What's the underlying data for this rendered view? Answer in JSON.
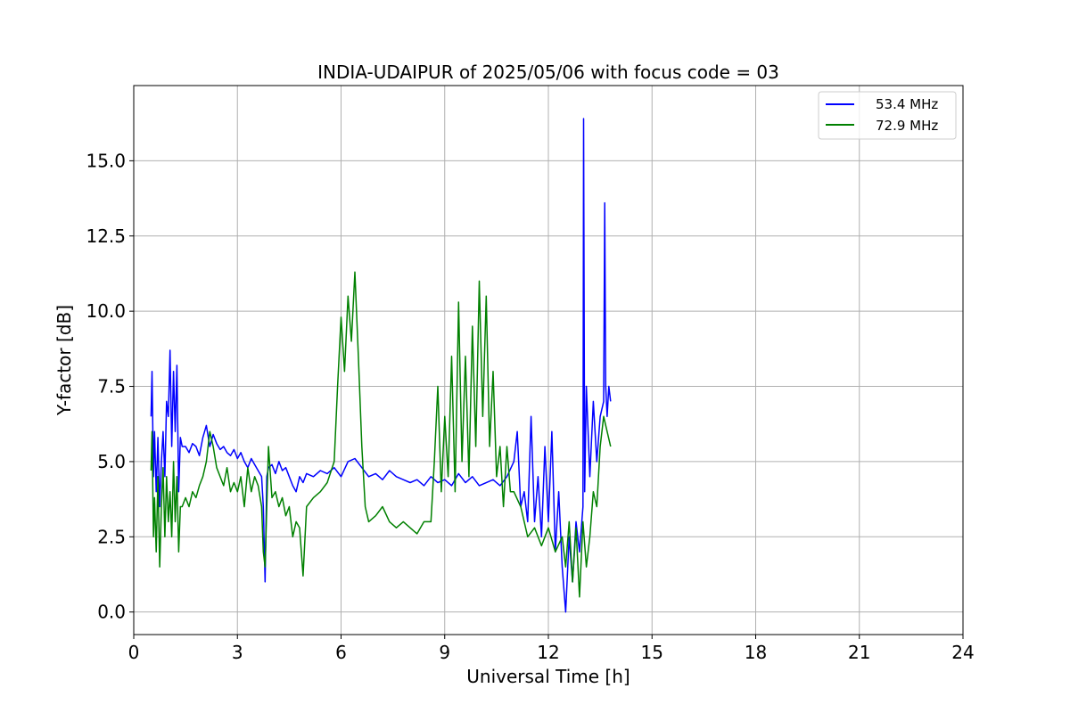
{
  "chart_data": {
    "type": "line",
    "title": "INDIA-UDAIPUR of 2025/05/06 with focus code = 03",
    "xlabel": "Universal Time [h]",
    "ylabel": "Y-factor [dB]",
    "xlim": [
      0,
      24
    ],
    "ylim": [
      -0.75,
      17.5
    ],
    "xticks": [
      0,
      3,
      6,
      9,
      12,
      15,
      18,
      21,
      24
    ],
    "xtick_labels": [
      "0",
      "3",
      "6",
      "9",
      "12",
      "15",
      "18",
      "21",
      "24"
    ],
    "yticks": [
      0,
      2.5,
      5,
      7.5,
      10,
      12.5,
      15
    ],
    "ytick_labels": [
      "0.0",
      "2.5",
      "5.0",
      "7.5",
      "10.0",
      "12.5",
      "15.0"
    ],
    "grid": true,
    "legend_position": "top-right",
    "series": [
      {
        "name": "53.4 MHz",
        "color": "#0000ff",
        "x": [
          0.5,
          0.53,
          0.57,
          0.6,
          0.65,
          0.7,
          0.75,
          0.8,
          0.85,
          0.9,
          0.95,
          1.0,
          1.05,
          1.1,
          1.15,
          1.2,
          1.25,
          1.3,
          1.35,
          1.4,
          1.5,
          1.6,
          1.7,
          1.8,
          1.9,
          2.0,
          2.1,
          2.2,
          2.3,
          2.4,
          2.5,
          2.6,
          2.7,
          2.8,
          2.9,
          3.0,
          3.1,
          3.2,
          3.3,
          3.4,
          3.5,
          3.6,
          3.7,
          3.75,
          3.8,
          3.85,
          3.9,
          4.0,
          4.1,
          4.2,
          4.3,
          4.4,
          4.5,
          4.6,
          4.7,
          4.8,
          4.9,
          5.0,
          5.2,
          5.4,
          5.6,
          5.8,
          6.0,
          6.2,
          6.4,
          6.6,
          6.8,
          7.0,
          7.2,
          7.4,
          7.6,
          7.8,
          8.0,
          8.2,
          8.4,
          8.6,
          8.8,
          9.0,
          9.2,
          9.4,
          9.6,
          9.8,
          10.0,
          10.2,
          10.4,
          10.6,
          10.8,
          11.0,
          11.1,
          11.2,
          11.3,
          11.4,
          11.5,
          11.6,
          11.7,
          11.8,
          11.9,
          12.0,
          12.1,
          12.2,
          12.3,
          12.4,
          12.5,
          12.6,
          12.7,
          12.8,
          12.9,
          13.0,
          13.02,
          13.05,
          13.1,
          13.2,
          13.3,
          13.4,
          13.5,
          13.6,
          13.63,
          13.66,
          13.7,
          13.75,
          13.8
        ],
        "values": [
          6.5,
          8.0,
          4.5,
          6.0,
          4.0,
          5.8,
          3.5,
          5.0,
          6.0,
          4.5,
          7.0,
          6.5,
          8.7,
          5.5,
          8.0,
          6.0,
          8.2,
          4.0,
          5.8,
          5.5,
          5.5,
          5.3,
          5.6,
          5.5,
          5.2,
          5.8,
          6.2,
          5.5,
          5.9,
          5.6,
          5.4,
          5.5,
          5.3,
          5.2,
          5.4,
          5.1,
          5.3,
          5.0,
          4.8,
          5.1,
          4.9,
          4.7,
          4.5,
          3.5,
          1.0,
          4.5,
          4.8,
          4.9,
          4.6,
          5.0,
          4.7,
          4.8,
          4.5,
          4.2,
          4.0,
          4.5,
          4.3,
          4.6,
          4.5,
          4.7,
          4.6,
          4.8,
          4.5,
          5.0,
          5.1,
          4.8,
          4.5,
          4.6,
          4.4,
          4.7,
          4.5,
          4.4,
          4.3,
          4.4,
          4.2,
          4.5,
          4.3,
          4.4,
          4.2,
          4.6,
          4.3,
          4.5,
          4.2,
          4.3,
          4.4,
          4.2,
          4.5,
          5.0,
          6.0,
          3.5,
          4.0,
          3.0,
          6.5,
          3.0,
          4.5,
          2.5,
          5.5,
          3.0,
          6.0,
          2.0,
          4.0,
          1.5,
          0.0,
          2.5,
          1.0,
          3.0,
          2.0,
          3.5,
          16.4,
          4.0,
          7.5,
          4.5,
          7.0,
          5.0,
          6.5,
          7.0,
          13.6,
          7.5,
          6.5,
          7.5,
          7.0
        ]
      },
      {
        "name": "72.9 MHz",
        "color": "#008000",
        "x": [
          0.5,
          0.53,
          0.57,
          0.6,
          0.65,
          0.7,
          0.75,
          0.8,
          0.85,
          0.9,
          0.95,
          1.0,
          1.05,
          1.1,
          1.15,
          1.2,
          1.25,
          1.3,
          1.35,
          1.4,
          1.5,
          1.6,
          1.7,
          1.8,
          1.9,
          2.0,
          2.1,
          2.2,
          2.3,
          2.4,
          2.5,
          2.6,
          2.7,
          2.8,
          2.9,
          3.0,
          3.1,
          3.2,
          3.3,
          3.4,
          3.5,
          3.6,
          3.7,
          3.75,
          3.8,
          3.85,
          3.9,
          4.0,
          4.1,
          4.2,
          4.3,
          4.4,
          4.5,
          4.6,
          4.7,
          4.8,
          4.9,
          5.0,
          5.2,
          5.4,
          5.6,
          5.8,
          5.9,
          6.0,
          6.1,
          6.2,
          6.3,
          6.4,
          6.5,
          6.6,
          6.7,
          6.8,
          7.0,
          7.2,
          7.4,
          7.6,
          7.8,
          8.0,
          8.2,
          8.4,
          8.6,
          8.7,
          8.8,
          8.9,
          9.0,
          9.1,
          9.2,
          9.3,
          9.4,
          9.5,
          9.6,
          9.7,
          9.8,
          9.9,
          10.0,
          10.1,
          10.2,
          10.3,
          10.4,
          10.5,
          10.6,
          10.7,
          10.8,
          10.9,
          11.0,
          11.2,
          11.4,
          11.6,
          11.8,
          12.0,
          12.2,
          12.4,
          12.5,
          12.6,
          12.7,
          12.8,
          12.9,
          13.0,
          13.1,
          13.2,
          13.3,
          13.4,
          13.5,
          13.6,
          13.7,
          13.8
        ],
        "values": [
          4.7,
          6.0,
          2.5,
          3.8,
          2.0,
          4.5,
          1.5,
          3.5,
          4.8,
          2.5,
          4.5,
          3.0,
          4.0,
          2.5,
          5.0,
          3.0,
          4.5,
          2.0,
          3.5,
          3.5,
          3.8,
          3.5,
          4.0,
          3.8,
          4.2,
          4.5,
          5.0,
          6.0,
          5.5,
          4.8,
          4.5,
          4.2,
          4.8,
          4.0,
          4.3,
          4.0,
          4.5,
          3.5,
          4.8,
          4.0,
          4.5,
          4.2,
          3.5,
          2.0,
          1.5,
          3.5,
          5.5,
          3.8,
          4.0,
          3.5,
          3.8,
          3.2,
          3.5,
          2.5,
          3.0,
          2.8,
          1.2,
          3.5,
          3.8,
          4.0,
          4.3,
          5.0,
          7.5,
          9.8,
          8.0,
          10.5,
          9.0,
          11.3,
          8.5,
          5.5,
          3.5,
          3.0,
          3.2,
          3.5,
          3.0,
          2.8,
          3.0,
          2.8,
          2.6,
          3.0,
          3.0,
          5.0,
          7.5,
          4.0,
          6.5,
          4.5,
          8.5,
          4.0,
          10.3,
          5.0,
          8.5,
          4.5,
          9.5,
          5.5,
          11.0,
          6.5,
          10.5,
          5.5,
          8.0,
          4.5,
          5.5,
          3.5,
          5.5,
          4.0,
          4.0,
          3.5,
          2.5,
          2.8,
          2.2,
          2.8,
          2.0,
          2.5,
          1.5,
          3.0,
          1.0,
          2.8,
          0.5,
          3.0,
          1.5,
          2.5,
          4.0,
          3.5,
          5.5,
          6.5,
          6.0,
          5.5
        ]
      }
    ]
  }
}
